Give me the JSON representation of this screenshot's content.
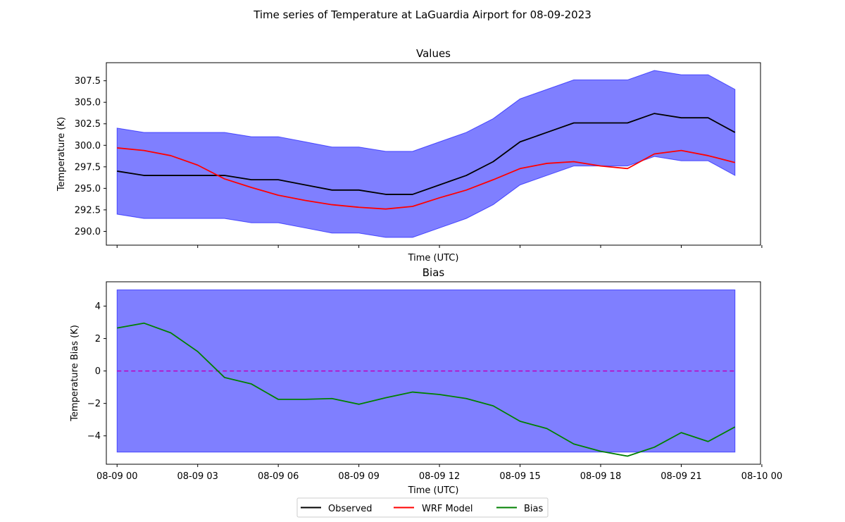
{
  "suptitle": "Time series of Temperature at LaGuardia Airport for 08-09-2023",
  "legend": {
    "placement": "bottom-center",
    "entries": [
      {
        "label": "Observed",
        "color": "#000000"
      },
      {
        "label": "WRF Model",
        "color": "#ff0000"
      },
      {
        "label": "Bias",
        "color": "#008000"
      }
    ]
  },
  "chart_data": [
    {
      "type": "line",
      "title": "Values",
      "xlabel": "Time (UTC)",
      "ylabel": "Temperature (K)",
      "x_hours": [
        0,
        1,
        2,
        3,
        4,
        5,
        6,
        7,
        8,
        9,
        10,
        11,
        12,
        13,
        14,
        15,
        16,
        17,
        18,
        19,
        20,
        21,
        22,
        23
      ],
      "xlim": [
        -0.4,
        23.95
      ],
      "ylim": [
        288.4,
        309.6
      ],
      "x_tick_hours": [
        0,
        3,
        6,
        9,
        12,
        15,
        18,
        21,
        24
      ],
      "x_tick_labels": [
        "",
        "",
        "",
        "",
        "",
        "",
        "",
        "",
        ""
      ],
      "y_ticks": [
        290.0,
        292.5,
        295.0,
        297.5,
        300.0,
        302.5,
        305.0,
        307.5
      ],
      "y_tick_labels": [
        "290.0",
        "292.5",
        "295.0",
        "297.5",
        "300.0",
        "302.5",
        "305.0",
        "307.5"
      ],
      "band": {
        "name": "Observed ±5 K",
        "color": "#0000ff",
        "alpha": 0.5,
        "lower": [
          292.0,
          291.5,
          291.5,
          291.5,
          291.5,
          291.0,
          291.0,
          290.4,
          289.8,
          289.8,
          289.3,
          289.3,
          290.4,
          291.5,
          293.1,
          295.4,
          296.5,
          297.6,
          297.6,
          297.6,
          298.7,
          298.2,
          298.2,
          296.5
        ],
        "upper": [
          302.0,
          301.5,
          301.5,
          301.5,
          301.5,
          301.0,
          301.0,
          300.4,
          299.8,
          299.8,
          299.3,
          299.3,
          300.4,
          301.5,
          303.1,
          305.4,
          306.5,
          307.6,
          307.6,
          307.6,
          308.7,
          308.2,
          308.2,
          306.5
        ]
      },
      "series": [
        {
          "name": "Observed",
          "color": "#000000",
          "values": [
            297.0,
            296.5,
            296.5,
            296.5,
            296.5,
            296.0,
            296.0,
            295.4,
            294.8,
            294.8,
            294.3,
            294.3,
            295.4,
            296.5,
            298.1,
            300.4,
            301.5,
            302.6,
            302.6,
            302.6,
            303.7,
            303.2,
            303.2,
            301.5
          ]
        },
        {
          "name": "WRF Model",
          "color": "#ff0000",
          "values": [
            299.7,
            299.4,
            298.8,
            297.7,
            296.1,
            295.1,
            294.2,
            293.6,
            293.1,
            292.8,
            292.6,
            292.9,
            293.9,
            294.8,
            296.0,
            297.3,
            297.9,
            298.1,
            297.6,
            297.3,
            299.0,
            299.4,
            298.8,
            298.0
          ]
        }
      ]
    },
    {
      "type": "line",
      "title": "Bias",
      "xlabel": "Time (UTC)",
      "ylabel": "Temperature Bias (K)",
      "x_hours": [
        0,
        1,
        2,
        3,
        4,
        5,
        6,
        7,
        8,
        9,
        10,
        11,
        12,
        13,
        14,
        15,
        16,
        17,
        18,
        19,
        20,
        21,
        22,
        23
      ],
      "xlim": [
        -0.4,
        23.95
      ],
      "ylim": [
        -5.75,
        5.5
      ],
      "x_tick_hours": [
        0,
        3,
        6,
        9,
        12,
        15,
        18,
        21,
        24
      ],
      "x_tick_labels": [
        "08-09 00",
        "08-09 03",
        "08-09 06",
        "08-09 09",
        "08-09 12",
        "08-09 15",
        "08-09 18",
        "08-09 21",
        "08-10 00"
      ],
      "y_ticks": [
        -4,
        -2,
        0,
        2,
        4
      ],
      "y_tick_labels": [
        "−4",
        "−2",
        "0",
        "2",
        "4"
      ],
      "band": {
        "name": "±5 K",
        "color": "#0000ff",
        "alpha": 0.5,
        "lower": [
          -5,
          -5,
          -5,
          -5,
          -5,
          -5,
          -5,
          -5,
          -5,
          -5,
          -5,
          -5,
          -5,
          -5,
          -5,
          -5,
          -5,
          -5,
          -5,
          -5,
          -5,
          -5,
          -5,
          -5
        ],
        "upper": [
          5,
          5,
          5,
          5,
          5,
          5,
          5,
          5,
          5,
          5,
          5,
          5,
          5,
          5,
          5,
          5,
          5,
          5,
          5,
          5,
          5,
          5,
          5,
          5
        ]
      },
      "zero_line": {
        "value": 0,
        "color": "#bf00bf",
        "style": "dashed"
      },
      "series": [
        {
          "name": "Bias",
          "color": "#008000",
          "values": [
            2.65,
            2.95,
            2.35,
            1.2,
            -0.4,
            -0.8,
            -1.75,
            -1.75,
            -1.7,
            -2.05,
            -1.65,
            -1.3,
            -1.45,
            -1.7,
            -2.15,
            -3.1,
            -3.55,
            -4.5,
            -4.95,
            -5.25,
            -4.7,
            -3.8,
            -4.35,
            -3.45
          ]
        }
      ]
    }
  ]
}
